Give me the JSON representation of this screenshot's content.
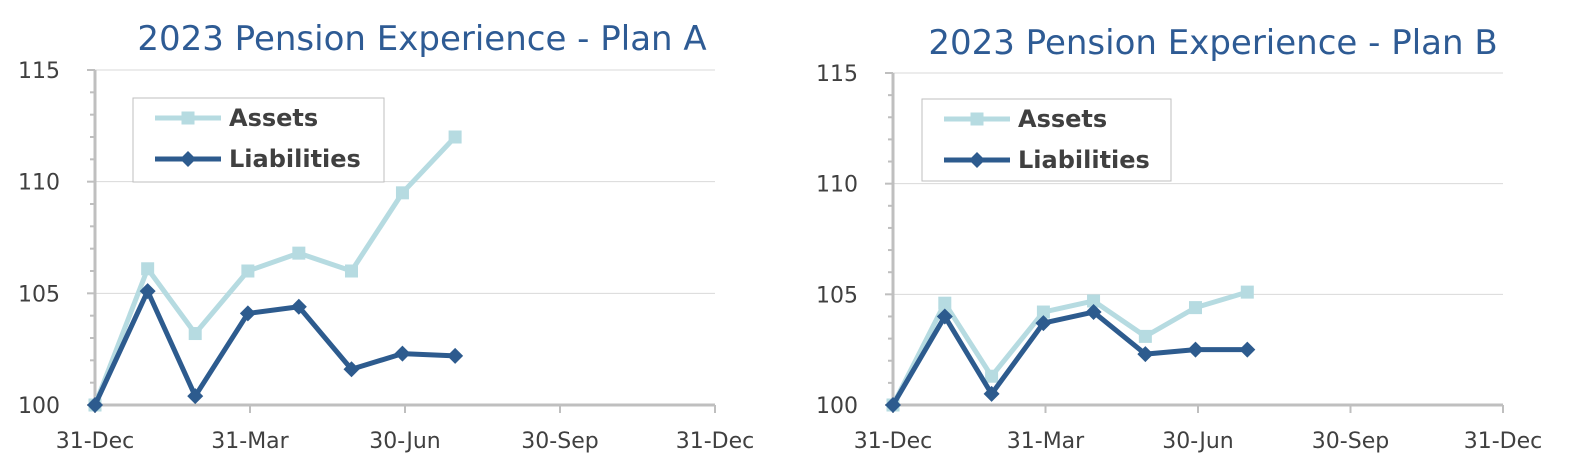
{
  "colors": {
    "assets": "#b6dbe1",
    "liabilities": "#2d5b8e",
    "title": "#2e5b94",
    "axis": "#bfbfbf",
    "grid": "#d9d9d9"
  },
  "chart_data": [
    {
      "type": "line",
      "title": "2023 Pension Experience - Plan A",
      "x_ticks": [
        "31-Dec",
        "31-Mar",
        "30-Jun",
        "30-Sep",
        "31-Dec"
      ],
      "xlim": [
        "2022-12-31",
        "2023-12-31"
      ],
      "y_ticks": [
        "100",
        "105",
        "110",
        "115"
      ],
      "ylim": [
        100,
        115
      ],
      "grid": "horizontal",
      "legend_position": "top-left",
      "x": [
        "2022-12-31",
        "2023-01-31",
        "2023-02-28",
        "2023-03-31",
        "2023-04-30",
        "2023-05-31",
        "2023-06-30",
        "2023-07-31"
      ],
      "series": [
        {
          "name": "Assets",
          "marker": "square",
          "values": [
            100.0,
            106.1,
            103.2,
            106.0,
            106.8,
            106.0,
            109.5,
            112.0
          ]
        },
        {
          "name": "Liabilities",
          "marker": "diamond",
          "values": [
            100.0,
            105.1,
            100.4,
            104.1,
            104.4,
            101.6,
            102.3,
            102.2
          ]
        }
      ]
    },
    {
      "type": "line",
      "title": "2023 Pension Experience - Plan B",
      "x_ticks": [
        "31-Dec",
        "31-Mar",
        "30-Jun",
        "30-Sep",
        "31-Dec"
      ],
      "xlim": [
        "2022-12-31",
        "2023-12-31"
      ],
      "y_ticks": [
        "100",
        "105",
        "110",
        "115"
      ],
      "ylim": [
        100,
        115
      ],
      "grid": "horizontal",
      "legend_position": "top-left",
      "x": [
        "2022-12-31",
        "2023-01-31",
        "2023-02-28",
        "2023-03-31",
        "2023-04-30",
        "2023-05-31",
        "2023-06-30",
        "2023-07-31"
      ],
      "series": [
        {
          "name": "Assets",
          "marker": "square",
          "values": [
            100.0,
            104.6,
            101.3,
            104.2,
            104.7,
            103.1,
            104.4,
            105.1
          ]
        },
        {
          "name": "Liabilities",
          "marker": "diamond",
          "values": [
            100.0,
            104.0,
            100.5,
            103.7,
            104.2,
            102.3,
            102.5,
            102.5
          ]
        }
      ]
    }
  ]
}
